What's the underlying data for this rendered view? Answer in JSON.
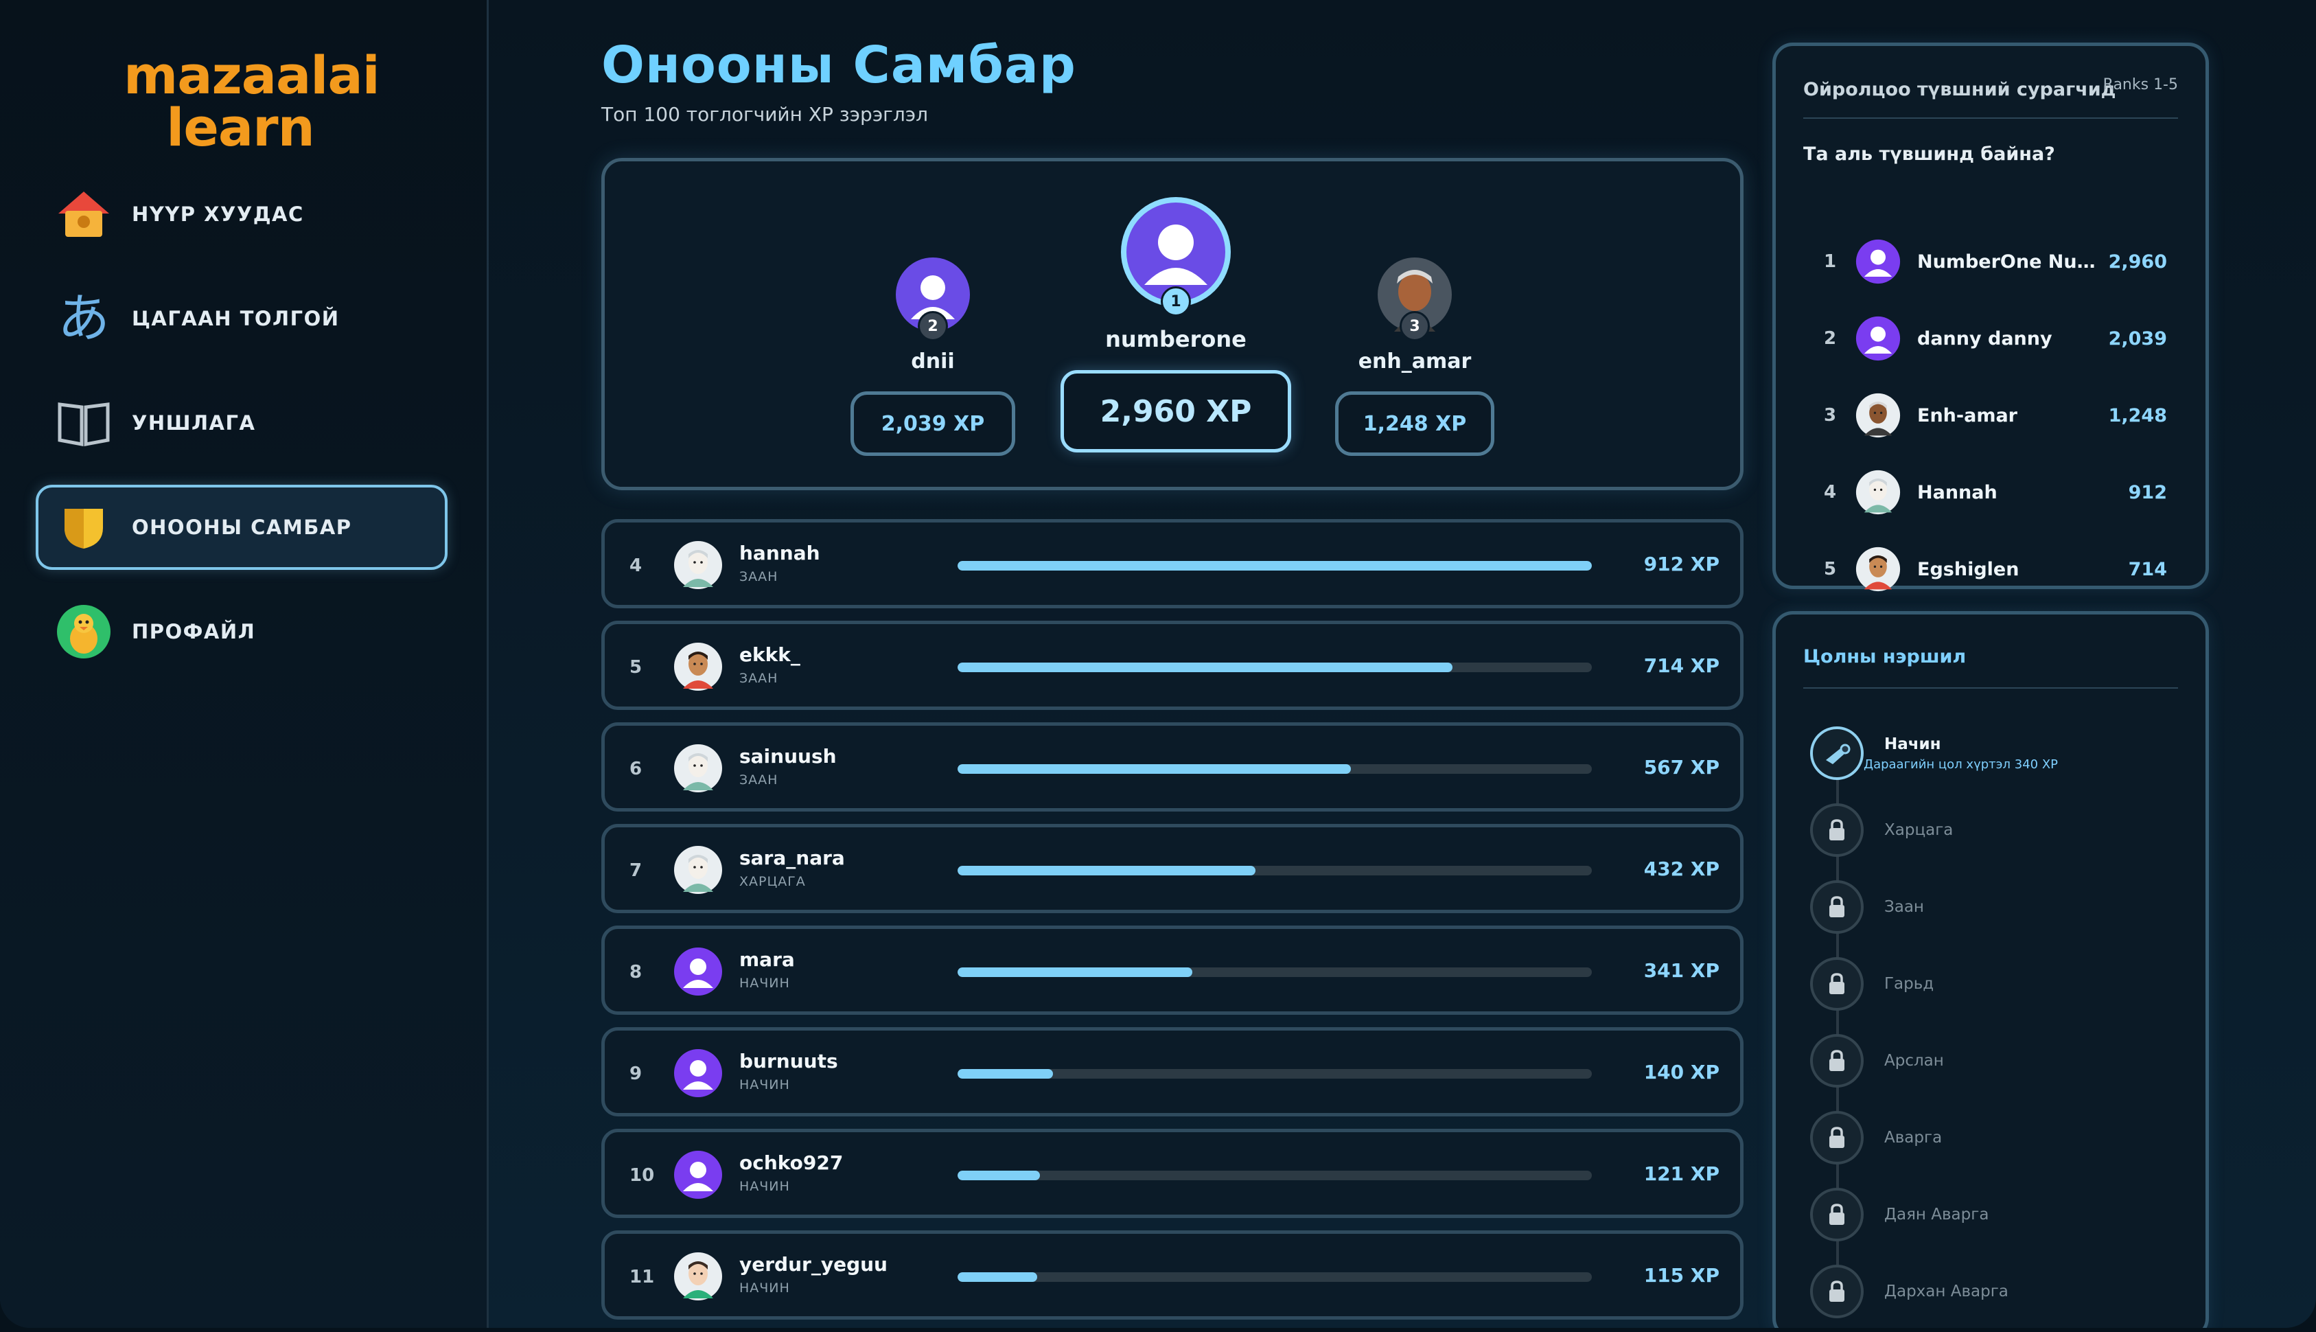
{
  "brand": {
    "logo_line1": "mazaalai",
    "logo_line2": "learn"
  },
  "sidebar": {
    "items": [
      {
        "label": "НҮҮР ХУУДАС",
        "icon": "home-icon"
      },
      {
        "label": "ЦАГААН ТОЛГОЙ",
        "icon": "hiragana-icon"
      },
      {
        "label": "УНШЛАГА",
        "icon": "book-icon"
      },
      {
        "label": "ОНООНЫ САМБАР",
        "icon": "shield-icon",
        "active": true
      },
      {
        "label": "ПРОФАЙЛ",
        "icon": "duck-avatar-icon"
      }
    ]
  },
  "header": {
    "title": "Онооны Самбар",
    "subtitle": "Топ 100 тоглогчийн XP зэрэглэл"
  },
  "podium": {
    "first": {
      "rank": "1",
      "name": "numberone",
      "xp": "2,960 XP"
    },
    "second": {
      "rank": "2",
      "name": "dnii",
      "xp": "2,039 XP"
    },
    "third": {
      "rank": "3",
      "name": "enh_amar",
      "xp": "1,248 XP"
    }
  },
  "leaderboard": [
    {
      "rank": "4",
      "name": "hannah",
      "tier": "ЗААН",
      "xp": "912 XP",
      "progress": 1.0
    },
    {
      "rank": "5",
      "name": "ekkk_",
      "tier": "ЗААН",
      "xp": "714 XP",
      "progress": 0.78
    },
    {
      "rank": "6",
      "name": "sainuush",
      "tier": "ЗААН",
      "xp": "567 XP",
      "progress": 0.62
    },
    {
      "rank": "7",
      "name": "sara_nara",
      "tier": "ХАРЦАГА",
      "xp": "432 XP",
      "progress": 0.47
    },
    {
      "rank": "8",
      "name": "mara",
      "tier": "НАЧИН",
      "xp": "341 XP",
      "progress": 0.37
    },
    {
      "rank": "9",
      "name": "burnuuts",
      "tier": "НАЧИН",
      "xp": "140 XP",
      "progress": 0.15
    },
    {
      "rank": "10",
      "name": "ochko927",
      "tier": "НАЧИН",
      "xp": "121 XP",
      "progress": 0.13
    },
    {
      "rank": "11",
      "name": "yerdur_yeguu",
      "tier": "НАЧИН",
      "xp": "115 XP",
      "progress": 0.125
    }
  ],
  "nearby": {
    "title": "Ойролцоо түвшний сурагчид",
    "ranks_tag": "Ranks 1-5",
    "question": "Та аль түвшинд байна?",
    "rows": [
      {
        "n": "1",
        "name": "NumberOne Num...",
        "pts": "2,960"
      },
      {
        "n": "2",
        "name": "danny danny",
        "pts": "2,039"
      },
      {
        "n": "3",
        "name": "Enh-amar",
        "pts": "1,248"
      },
      {
        "n": "4",
        "name": "Hannah",
        "pts": "912"
      },
      {
        "n": "5",
        "name": "Egshiglen",
        "pts": "714"
      }
    ]
  },
  "ranks": {
    "title": "Цолны нэршил",
    "current": {
      "name": "Начин",
      "sub": "Дараагийн цол хүртэл 340 XP"
    },
    "locked": [
      "Харцага",
      "Заан",
      "Гарьд",
      "Арслан",
      "Аварга",
      "Даян Аварга",
      "Дархан Аварга"
    ]
  },
  "colors": {
    "accent": "#6fd0ff",
    "brand": "#f39a1d",
    "panel_border": "#355a70"
  }
}
